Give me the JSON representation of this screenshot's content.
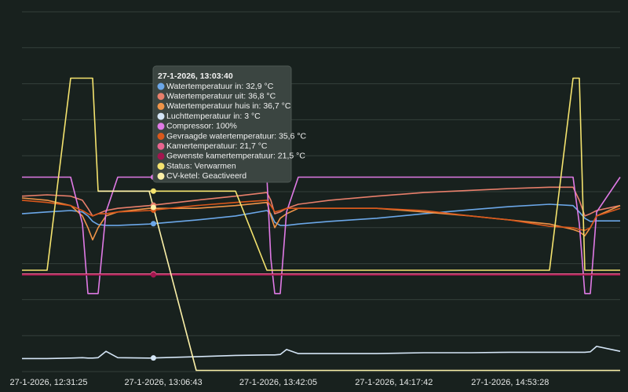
{
  "chart_data": {
    "type": "line",
    "x": [
      "27-1-2026, 12:23:12",
      "27-1-2026, 12:30:56",
      "27-1-2026, 12:38:11",
      "27-1-2026, 12:41:48",
      "27-1-2026, 12:43:30",
      "27-1-2026, 12:44:57",
      "27-1-2026, 12:46:38",
      "27-1-2026, 12:49:03",
      "27-1-2026, 12:52:41",
      "27-1-2026, 13:02:21",
      "27-1-2026, 13:16:51",
      "27-1-2026, 13:28:56",
      "27-1-2026, 13:38:36",
      "27-1-2026, 13:39:48",
      "27-1-2026, 13:41:01",
      "27-1-2026, 13:42:42",
      "27-1-2026, 13:44:38",
      "27-1-2026, 13:48:16",
      "27-1-2026, 13:57:56",
      "27-1-2026, 14:12:26",
      "27-1-2026, 14:26:56",
      "27-1-2026, 14:41:26",
      "27-1-2026, 14:53:31",
      "27-1-2026, 15:05:36",
      "27-1-2026, 15:12:51",
      "27-1-2026, 15:14:47",
      "27-1-2026, 15:16:28",
      "27-1-2026, 15:18:10",
      "27-1-2026, 15:20:06",
      "27-1-2026, 15:27:21"
    ],
    "xlim": [
      "27-1-2026, 12:23:12",
      "27-1-2026, 15:27:21"
    ],
    "xticks": [
      "27-1-2026, 12:31:25",
      "27-1-2026, 13:06:43",
      "27-1-2026, 13:42:05",
      "27-1-2026, 14:17:42",
      "27-1-2026, 14:53:28"
    ],
    "ylim": [
      0,
      80
    ],
    "yticks": [
      0,
      8,
      16,
      24,
      32,
      40,
      48,
      56,
      64,
      72,
      80
    ],
    "y2lim": [
      -67,
      242
    ],
    "grid": true,
    "series": [
      {
        "color": "#6ba7e8",
        "values": [
          35.1,
          35.5,
          35.8,
          35.5,
          34.6,
          33.4,
          32.7,
          32.5,
          32.5,
          32.8,
          33.7,
          34.6,
          35.8,
          35.1,
          33.2,
          32.5,
          32.5,
          32.8,
          33.4,
          34.1,
          35.1,
          36.0,
          36.7,
          37.2,
          36.9,
          35.5,
          34.1,
          33.4,
          33.5,
          33.5
        ]
      },
      {
        "color": "#e87f6b",
        "values": [
          39.0,
          39.3,
          39.0,
          38.1,
          36.3,
          34.6,
          35.1,
          35.8,
          36.3,
          36.9,
          38.1,
          39.0,
          39.8,
          38.1,
          35.1,
          35.5,
          36.3,
          37.2,
          38.1,
          39.0,
          39.8,
          40.3,
          40.7,
          41.0,
          41.0,
          38.1,
          34.6,
          35.1,
          35.8,
          36.9
        ]
      },
      {
        "color": "#ef9448",
        "values": [
          38.6,
          38.1,
          36.9,
          34.6,
          32.0,
          29.3,
          32.0,
          34.6,
          35.5,
          36.3,
          36.3,
          36.9,
          37.6,
          34.6,
          32.0,
          34.1,
          35.1,
          36.3,
          36.3,
          36.3,
          35.5,
          34.6,
          33.7,
          32.8,
          31.6,
          31.1,
          30.2,
          32.0,
          34.6,
          36.9
        ]
      },
      {
        "color": "#d4e5f6",
        "values": [
          2.9,
          2.9,
          3.0,
          3.1,
          3.0,
          3.0,
          3.1,
          4.5,
          3.1,
          3.0,
          3.3,
          3.6,
          3.7,
          3.7,
          3.7,
          3.8,
          4.9,
          4.0,
          4.0,
          4.0,
          4.2,
          4.2,
          4.3,
          4.3,
          4.3,
          4.3,
          4.3,
          4.4,
          5.6,
          4.5
        ]
      },
      {
        "color": "#e07ae6",
        "axis": "y2",
        "values": [
          100,
          100,
          100,
          60,
          0,
          0,
          0,
          70,
          100,
          100,
          100,
          100,
          100,
          30,
          0,
          0,
          70,
          100,
          100,
          100,
          100,
          100,
          100,
          100,
          100,
          60,
          0,
          0,
          70,
          100
        ]
      },
      {
        "color": "#d9581c",
        "values": [
          38.1,
          37.6,
          36.9,
          35.8,
          35.1,
          34.6,
          35.1,
          35.1,
          35.5,
          35.8,
          36.9,
          37.6,
          38.1,
          36.9,
          35.5,
          35.8,
          36.3,
          36.3,
          36.3,
          36.3,
          35.8,
          34.6,
          33.7,
          32.3,
          32.0,
          31.6,
          31.4,
          32.0,
          34.6,
          36.3
        ]
      },
      {
        "color": "#e8648f",
        "values": [
          21.7,
          21.7,
          21.7,
          21.7,
          21.7,
          21.7,
          21.7,
          21.7,
          21.7,
          21.7,
          21.7,
          21.7,
          21.7,
          21.7,
          21.7,
          21.7,
          21.7,
          21.7,
          21.7,
          21.7,
          21.7,
          21.7,
          21.7,
          21.7,
          21.7,
          21.7,
          21.7,
          21.7,
          21.7,
          21.7
        ]
      },
      {
        "color": "#a3164f",
        "values": [
          21.5,
          21.5,
          21.5,
          21.5,
          21.5,
          21.5,
          21.5,
          21.5,
          21.5,
          21.5,
          21.5,
          21.5,
          21.5,
          21.5,
          21.5,
          21.5,
          21.5,
          21.5,
          21.5,
          21.5,
          21.5,
          21.5,
          21.5,
          21.5,
          21.5,
          21.5,
          21.5,
          21.5,
          21.5,
          21.5
        ]
      },
      {
        "color": "#f4e36e",
        "axis": "y2",
        "values": [
          20,
          20,
          185,
          185,
          185,
          185,
          88,
          88,
          88,
          88,
          88,
          88,
          20,
          20,
          20,
          20,
          20,
          20,
          20,
          20,
          20,
          20,
          20,
          20,
          185,
          185,
          20,
          20,
          20,
          20
        ]
      },
      {
        "color": "#fbf0a8",
        "axis": "y2",
        "values": [
          null,
          null,
          null,
          null,
          null,
          null,
          88,
          88,
          88,
          88,
          -66,
          -66,
          -66,
          -66,
          -66,
          -66,
          -66,
          -66,
          -66,
          -66,
          -66,
          -66,
          -66,
          -66,
          -66,
          -66,
          -66,
          -66,
          -66,
          -66
        ]
      }
    ],
    "tooltip": {
      "title": "27-1-2026, 13:03:40",
      "items": [
        "Watertemperatuur in: 32,9 °C",
        "Watertemperatuur uit: 36,8 °C",
        "Watertemperatuur huis in: 36,7 °C",
        "Luchttemperatuur in: 3 °C",
        "Compressor: 100%",
        "Gevraagde watertemperatuur: 35,6 °C",
        "Kamertemperatuur: 21,7 °C",
        "Gewenste kamertemperatuur: 21,5 °C",
        "Status: Verwarmen",
        "CV-ketel: Geactiveerd"
      ]
    }
  }
}
